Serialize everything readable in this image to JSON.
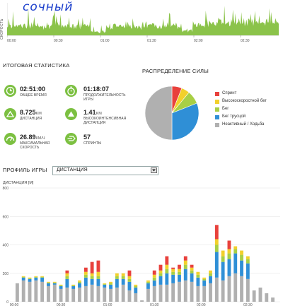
{
  "speed": {
    "ylabel": "СКОРОСТЬ",
    "handwritten_note": "сочный",
    "ticks": [
      "00:00",
      "00:30",
      "01:00",
      "01:30",
      "02:00",
      "02:30"
    ],
    "fill_color": "#8bc34a"
  },
  "summary": {
    "title": "ИТОГОВАЯ СТАТИСТИКА",
    "stats": [
      {
        "icon": "clock-icon",
        "value": "02:51:00",
        "unit": "",
        "label": "ОБЩЕЕ ВРЕМЯ"
      },
      {
        "icon": "stopwatch-icon",
        "value": "01:18:07",
        "unit": "",
        "label": "ПРОДОЛЖИТЕЛЬНОСТЬ ИГРЫ"
      },
      {
        "icon": "distance-icon",
        "value": "8.725",
        "unit": "KM",
        "label": "ДИСТАНЦИЯ"
      },
      {
        "icon": "high-intensity-icon",
        "value": "1.41",
        "unit": "KM",
        "label": "ВЫСОКОИНТЕНСИВНАЯ ДИСТАНЦИЯ"
      },
      {
        "icon": "speedometer-icon",
        "value": "26.89",
        "unit": "КМ/Ч",
        "label": "МАКСИМАЛЬНАЯ СКОРОСТЬ"
      },
      {
        "icon": "sprint-icon",
        "value": "57",
        "unit": "",
        "label": "СПРИНТЫ"
      }
    ]
  },
  "distribution": {
    "title": "РАСПРЕДЕЛЕНИЕ СИЛЫ",
    "legend": [
      {
        "name": "Спринт",
        "color": "#e8413c"
      },
      {
        "name": "Высокоскоростной бег",
        "color": "#f2d02b"
      },
      {
        "name": "Бег",
        "color": "#a8cf45"
      },
      {
        "name": "Бег трусцой",
        "color": "#2f8fd6"
      },
      {
        "name": "Неактивный / Ходьба",
        "color": "#b0b0b0"
      }
    ]
  },
  "profile": {
    "title": "ПРОФИЛЬ ИГРЫ",
    "select_value": "ДИСТАНЦИЯ"
  },
  "chart_data": [
    {
      "type": "pie",
      "categories": [
        "Спринт",
        "Высокоскоростной бег",
        "Бег",
        "Бег трусцой",
        "Неактивный / Ходьба"
      ],
      "values": [
        6,
        5,
        8,
        31,
        50
      ],
      "colors": [
        "#e8413c",
        "#f2d02b",
        "#a8cf45",
        "#2f8fd6",
        "#b0b0b0"
      ],
      "title": "РАСПРЕДЕЛЕНИЕ СИЛЫ"
    },
    {
      "type": "bar",
      "title": "",
      "ylabel": "ДИСТАНЦИЯ [M]",
      "ylim": [
        0,
        800
      ],
      "yticks": [
        0,
        200,
        400,
        600,
        800
      ],
      "xticks": [
        "00:00",
        "00:30",
        "01:00",
        "01:30",
        "02:00",
        "02:30"
      ],
      "stacked": true,
      "series": [
        {
          "name": "Неактивный / Ходьба",
          "color": "#b0b0b0",
          "values": [
            130,
            150,
            140,
            150,
            140,
            110,
            120,
            90,
            100,
            90,
            100,
            110,
            120,
            110,
            100,
            90,
            100,
            120,
            80,
            60,
            10,
            90,
            110,
            120,
            120,
            130,
            140,
            150,
            140,
            110,
            110,
            130,
            170,
            150,
            180,
            200,
            180,
            160,
            80,
            100,
            60,
            30
          ]
        },
        {
          "name": "Бег трусцой",
          "color": "#2f8fd6",
          "values": [
            0,
            20,
            20,
            20,
            30,
            20,
            10,
            20,
            60,
            20,
            30,
            60,
            40,
            50,
            20,
            30,
            60,
            40,
            60,
            40,
            0,
            40,
            40,
            60,
            80,
            60,
            50,
            80,
            60,
            60,
            40,
            50,
            180,
            130,
            120,
            140,
            110,
            110,
            0,
            0,
            0,
            0
          ]
        },
        {
          "name": "Бег",
          "color": "#a8cf45",
          "values": [
            0,
            5,
            5,
            5,
            5,
            5,
            5,
            5,
            20,
            5,
            10,
            20,
            20,
            20,
            5,
            10,
            20,
            20,
            20,
            10,
            0,
            10,
            20,
            20,
            30,
            20,
            20,
            30,
            20,
            20,
            10,
            20,
            50,
            40,
            40,
            30,
            40,
            30,
            0,
            0,
            0,
            0
          ]
        },
        {
          "name": "Высокоскоростной бег",
          "color": "#f2d02b",
          "values": [
            0,
            5,
            5,
            5,
            5,
            5,
            5,
            5,
            20,
            5,
            10,
            20,
            20,
            30,
            5,
            10,
            20,
            20,
            20,
            10,
            0,
            10,
            20,
            20,
            30,
            20,
            20,
            30,
            20,
            20,
            10,
            20,
            40,
            40,
            30,
            20,
            30,
            20,
            0,
            0,
            0,
            0
          ]
        },
        {
          "name": "Спринт",
          "color": "#e8413c",
          "values": [
            0,
            0,
            0,
            0,
            0,
            0,
            0,
            0,
            20,
            0,
            0,
            30,
            80,
            80,
            0,
            0,
            0,
            0,
            40,
            0,
            0,
            0,
            30,
            40,
            60,
            10,
            30,
            30,
            20,
            0,
            0,
            0,
            100,
            0,
            60,
            0,
            0,
            0,
            0,
            0,
            0,
            0
          ]
        }
      ]
    }
  ]
}
